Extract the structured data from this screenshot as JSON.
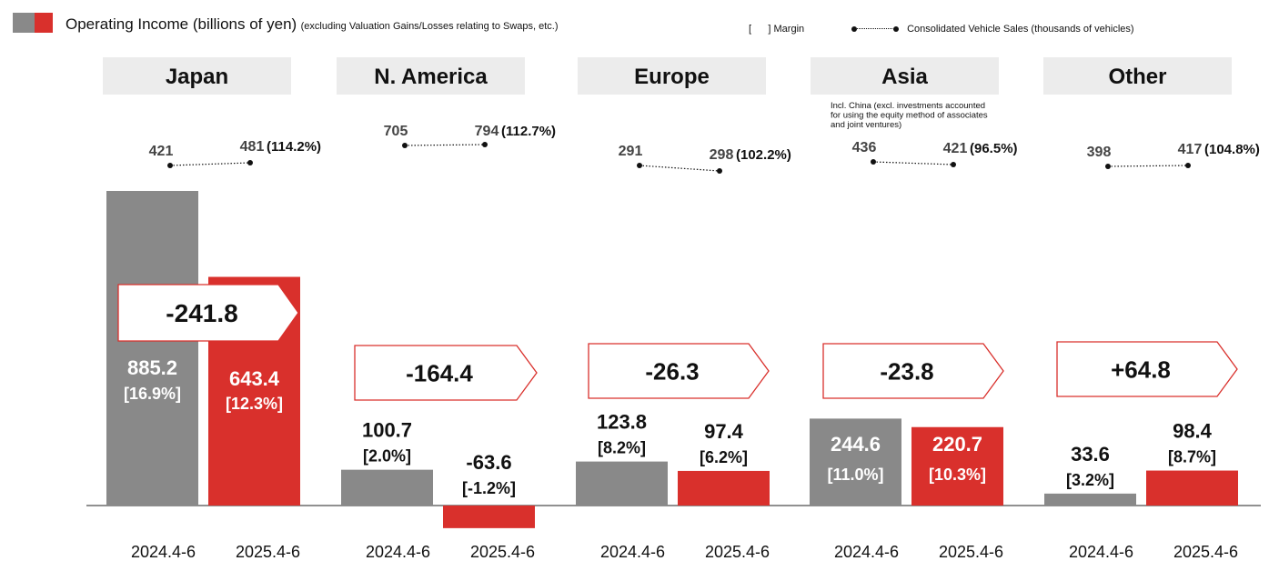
{
  "legend": {
    "operating_income_label": "Operating Income (billions of yen)",
    "operating_income_note": "(excluding Valuation Gains/Losses relating to Swaps, etc.)",
    "margin_label": "[      ] Margin",
    "vehicle_sales_label": "Consolidated Vehicle Sales (thousands of vehicles)"
  },
  "colors": {
    "prior": "#898989",
    "current": "#d9302c",
    "region_header_bg": "#ececec",
    "arrow_border": "#d9302c"
  },
  "chart_data": {
    "type": "bar",
    "periods": [
      "2024.4-6",
      "2025.4-6"
    ],
    "units": "billions of yen",
    "regions": [
      {
        "name": "Japan",
        "income": [
          885.2,
          643.4
        ],
        "margin": [
          "[16.9%]",
          "[12.3%]"
        ],
        "income_labels": [
          "885.2",
          "643.4"
        ],
        "change": "-241.8",
        "sales": [
          "421",
          "481"
        ],
        "sales_ratio": "(114.2%)"
      },
      {
        "name": "N. America",
        "income": [
          100.7,
          -63.6
        ],
        "margin": [
          "[2.0%]",
          "[-1.2%]"
        ],
        "income_labels": [
          "100.7",
          "-63.6"
        ],
        "change": "-164.4",
        "sales": [
          "705",
          "794"
        ],
        "sales_ratio": "(112.7%)"
      },
      {
        "name": "Europe",
        "income": [
          123.8,
          97.4
        ],
        "margin": [
          "[8.2%]",
          "[6.2%]"
        ],
        "income_labels": [
          "123.8",
          "97.4"
        ],
        "change": "-26.3",
        "sales": [
          "291",
          "298"
        ],
        "sales_ratio": "(102.2%)"
      },
      {
        "name": "Asia",
        "note": "Incl. China (excl. investments accounted for using the equity method of associates and joint ventures)",
        "note_lines": [
          "Incl. China (excl. investments accounted",
          "for using the equity method of associates",
          "and joint ventures)"
        ],
        "income": [
          244.6,
          220.7
        ],
        "margin": [
          "[11.0%]",
          "[10.3%]"
        ],
        "income_labels": [
          "244.6",
          "220.7"
        ],
        "change": "-23.8",
        "sales": [
          "436",
          "421"
        ],
        "sales_ratio": "(96.5%)"
      },
      {
        "name": "Other",
        "income": [
          33.6,
          98.4
        ],
        "margin": [
          "[3.2%]",
          "[8.7%]"
        ],
        "income_labels": [
          "33.6",
          "98.4"
        ],
        "change": "+64.8",
        "sales": [
          "398",
          "417"
        ],
        "sales_ratio": "(104.8%)"
      }
    ]
  }
}
